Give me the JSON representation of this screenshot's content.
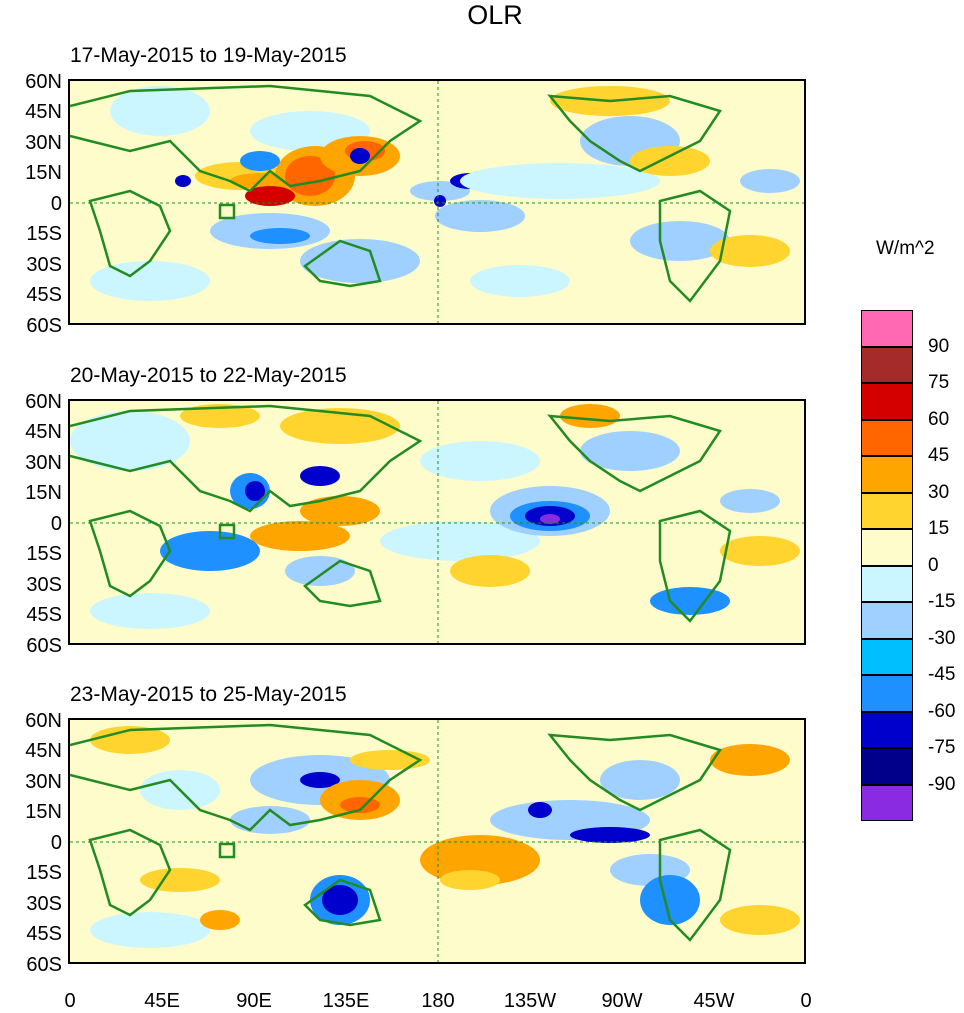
{
  "title": "OLR",
  "panels": [
    {
      "title": "17-May-2015 to 19-May-2015"
    },
    {
      "title": "20-May-2015 to 22-May-2015"
    },
    {
      "title": "23-May-2015 to 25-May-2015"
    }
  ],
  "lat_labels": [
    "60N",
    "45N",
    "30N",
    "15N",
    "0",
    "15S",
    "30S",
    "45S",
    "60S"
  ],
  "lon_labels": [
    "0",
    "45E",
    "90E",
    "135E",
    "180",
    "135W",
    "90W",
    "45W",
    "0"
  ],
  "colorbar": {
    "units": "W/m^2",
    "labels": [
      "90",
      "75",
      "60",
      "45",
      "30",
      "15",
      "0",
      "-15",
      "-30",
      "-45",
      "-60",
      "-75",
      "-90"
    ],
    "colors": [
      "#ff69b4",
      "#a52a2a",
      "#d40000",
      "#ff6600",
      "#ffa500",
      "#ffd42f",
      "#fffccb",
      "#ccf6ff",
      "#a0d0ff",
      "#00bfff",
      "#1e90ff",
      "#0000cd",
      "#00008b",
      "#8a2be2"
    ]
  }
}
